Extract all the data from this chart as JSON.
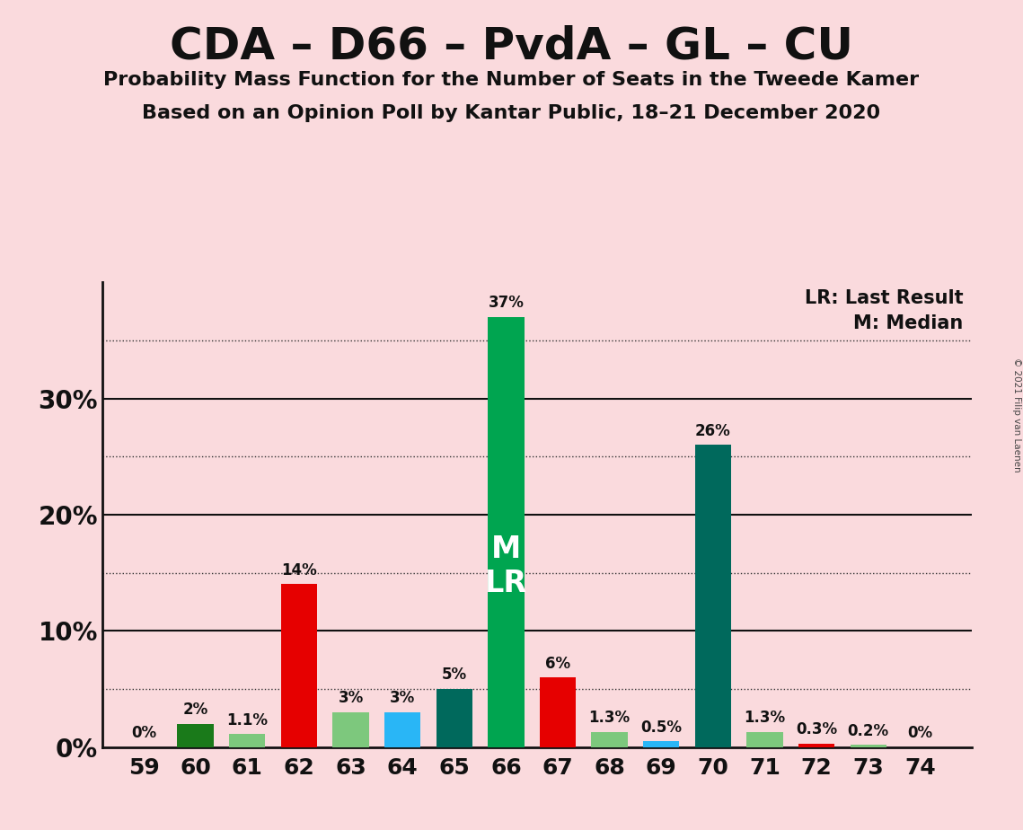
{
  "title": "CDA – D66 – PvdA – GL – CU",
  "subtitle1": "Probability Mass Function for the Number of Seats in the Tweede Kamer",
  "subtitle2": "Based on an Opinion Poll by Kantar Public, 18–21 December 2020",
  "copyright": "© 2021 Filip van Laenen",
  "seats": [
    59,
    60,
    61,
    62,
    63,
    64,
    65,
    66,
    67,
    68,
    69,
    70,
    71,
    72,
    73,
    74
  ],
  "values": [
    0.0,
    2.0,
    1.1,
    14.0,
    3.0,
    3.0,
    5.0,
    37.0,
    6.0,
    1.3,
    0.5,
    26.0,
    1.3,
    0.3,
    0.2,
    0.0
  ],
  "labels": [
    "0%",
    "2%",
    "1.1%",
    "14%",
    "3%",
    "3%",
    "5%",
    "37%",
    "6%",
    "1.3%",
    "0.5%",
    "26%",
    "1.3%",
    "0.3%",
    "0.2%",
    "0%"
  ],
  "colors": [
    "#006400",
    "#1a7a1a",
    "#7dc87d",
    "#e60000",
    "#7dc87d",
    "#29b6f6",
    "#00695c",
    "#00a550",
    "#e60000",
    "#7dc87d",
    "#29b6f6",
    "#00695c",
    "#7dc87d",
    "#e60000",
    "#7dc87d",
    "#006400"
  ],
  "median_seat": 66,
  "background_color": "#FADADD",
  "legend_lr": "LR: Last Result",
  "legend_m": "M: Median",
  "ylim": [
    0,
    40
  ],
  "solid_lines": [
    10,
    20,
    30
  ],
  "dotted_lines": [
    5,
    15,
    25,
    35
  ],
  "yticks": [
    0,
    10,
    20,
    30
  ],
  "ytick_labels": [
    "0%",
    "10%",
    "20%",
    "30%"
  ],
  "bar_width": 0.7
}
